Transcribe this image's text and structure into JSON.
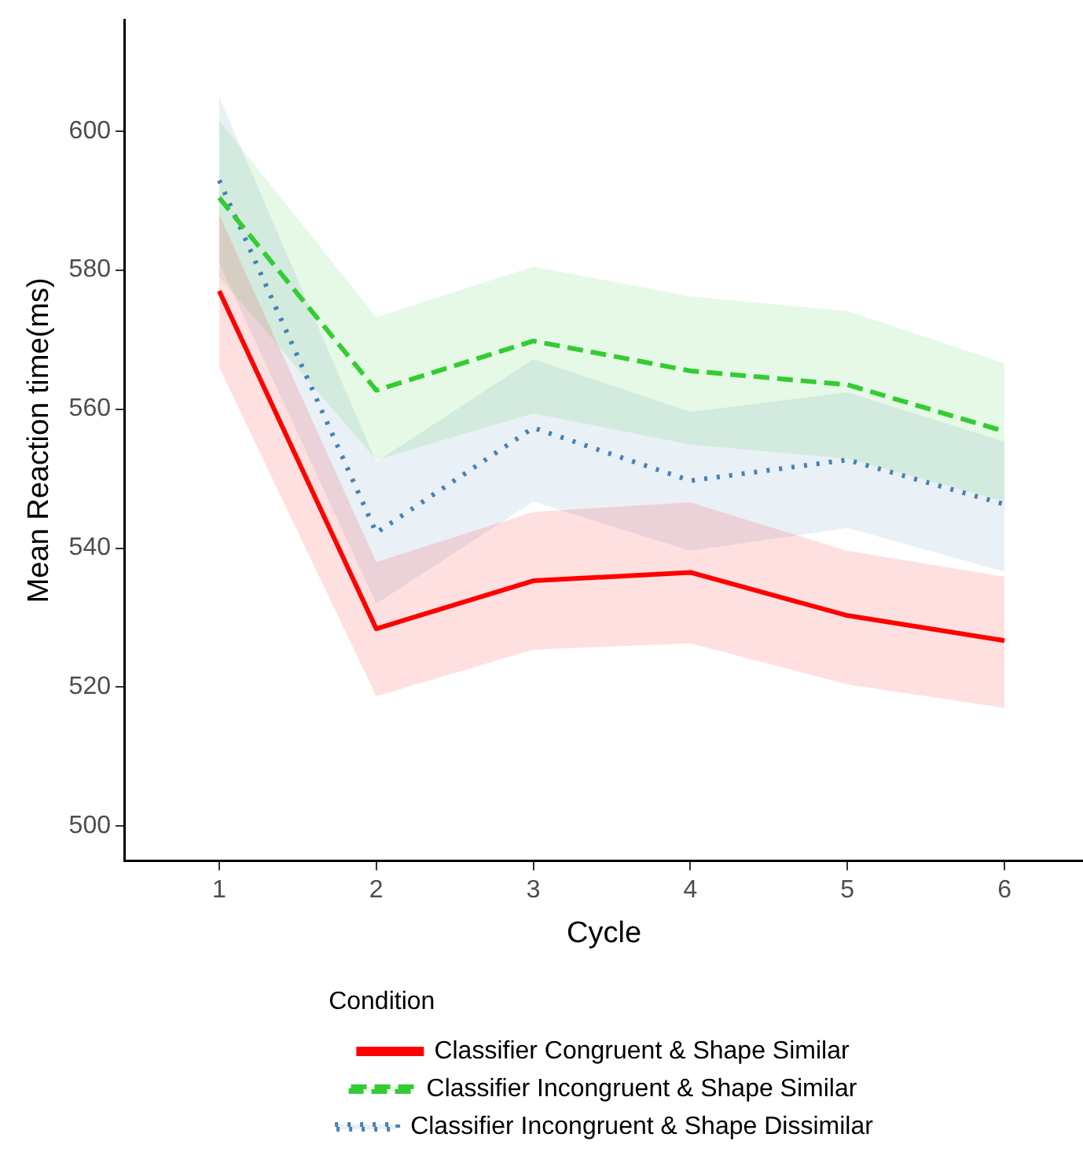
{
  "chart_data": {
    "type": "line",
    "xlabel": "Cycle",
    "ylabel": "Mean Reaction time(ms)",
    "legend_title": "Condition",
    "legend": "bottom",
    "grid": false,
    "marker": "none",
    "x": [
      1,
      2,
      3,
      4,
      5,
      6
    ],
    "xlim": [
      0.4,
      6.5
    ],
    "xticks": [
      1,
      2,
      3,
      4,
      5,
      6
    ],
    "ylim": [
      495,
      616
    ],
    "yticks": [
      500,
      520,
      540,
      560,
      580,
      600
    ],
    "series": [
      {
        "name": "Classifier Congruent & Shape Similar",
        "color": "#ff0000",
        "line_style": "solid",
        "values": [
          577,
          528.4,
          535.3,
          536.5,
          530.3,
          526.7
        ],
        "lower": [
          566,
          518.7,
          525.4,
          526.3,
          520.4,
          517
        ],
        "upper": [
          588,
          538,
          545.2,
          546.6,
          539.6,
          535.9
        ]
      },
      {
        "name": "Classifier Incongruent & Shape Similar",
        "color": "#33cc33",
        "line_style": "dashed",
        "values": [
          590.4,
          562.7,
          569.8,
          565.5,
          563.5,
          556.8
        ],
        "lower": [
          579,
          552.7,
          559.4,
          554.9,
          552.9,
          546.7
        ],
        "upper": [
          601.5,
          573.2,
          580.5,
          576.2,
          574.1,
          566.6
        ]
      },
      {
        "name": "Classifier Incongruent & Shape Dissimilar",
        "color": "#4682b4",
        "line_style": "dotted",
        "values": [
          592.9,
          542.2,
          557.3,
          549.7,
          552.7,
          546.3
        ],
        "lower": [
          581,
          532,
          546.7,
          539.6,
          542.9,
          536.6
        ],
        "upper": [
          604.9,
          552.4,
          567.2,
          559.6,
          562.4,
          555.3
        ]
      }
    ]
  }
}
